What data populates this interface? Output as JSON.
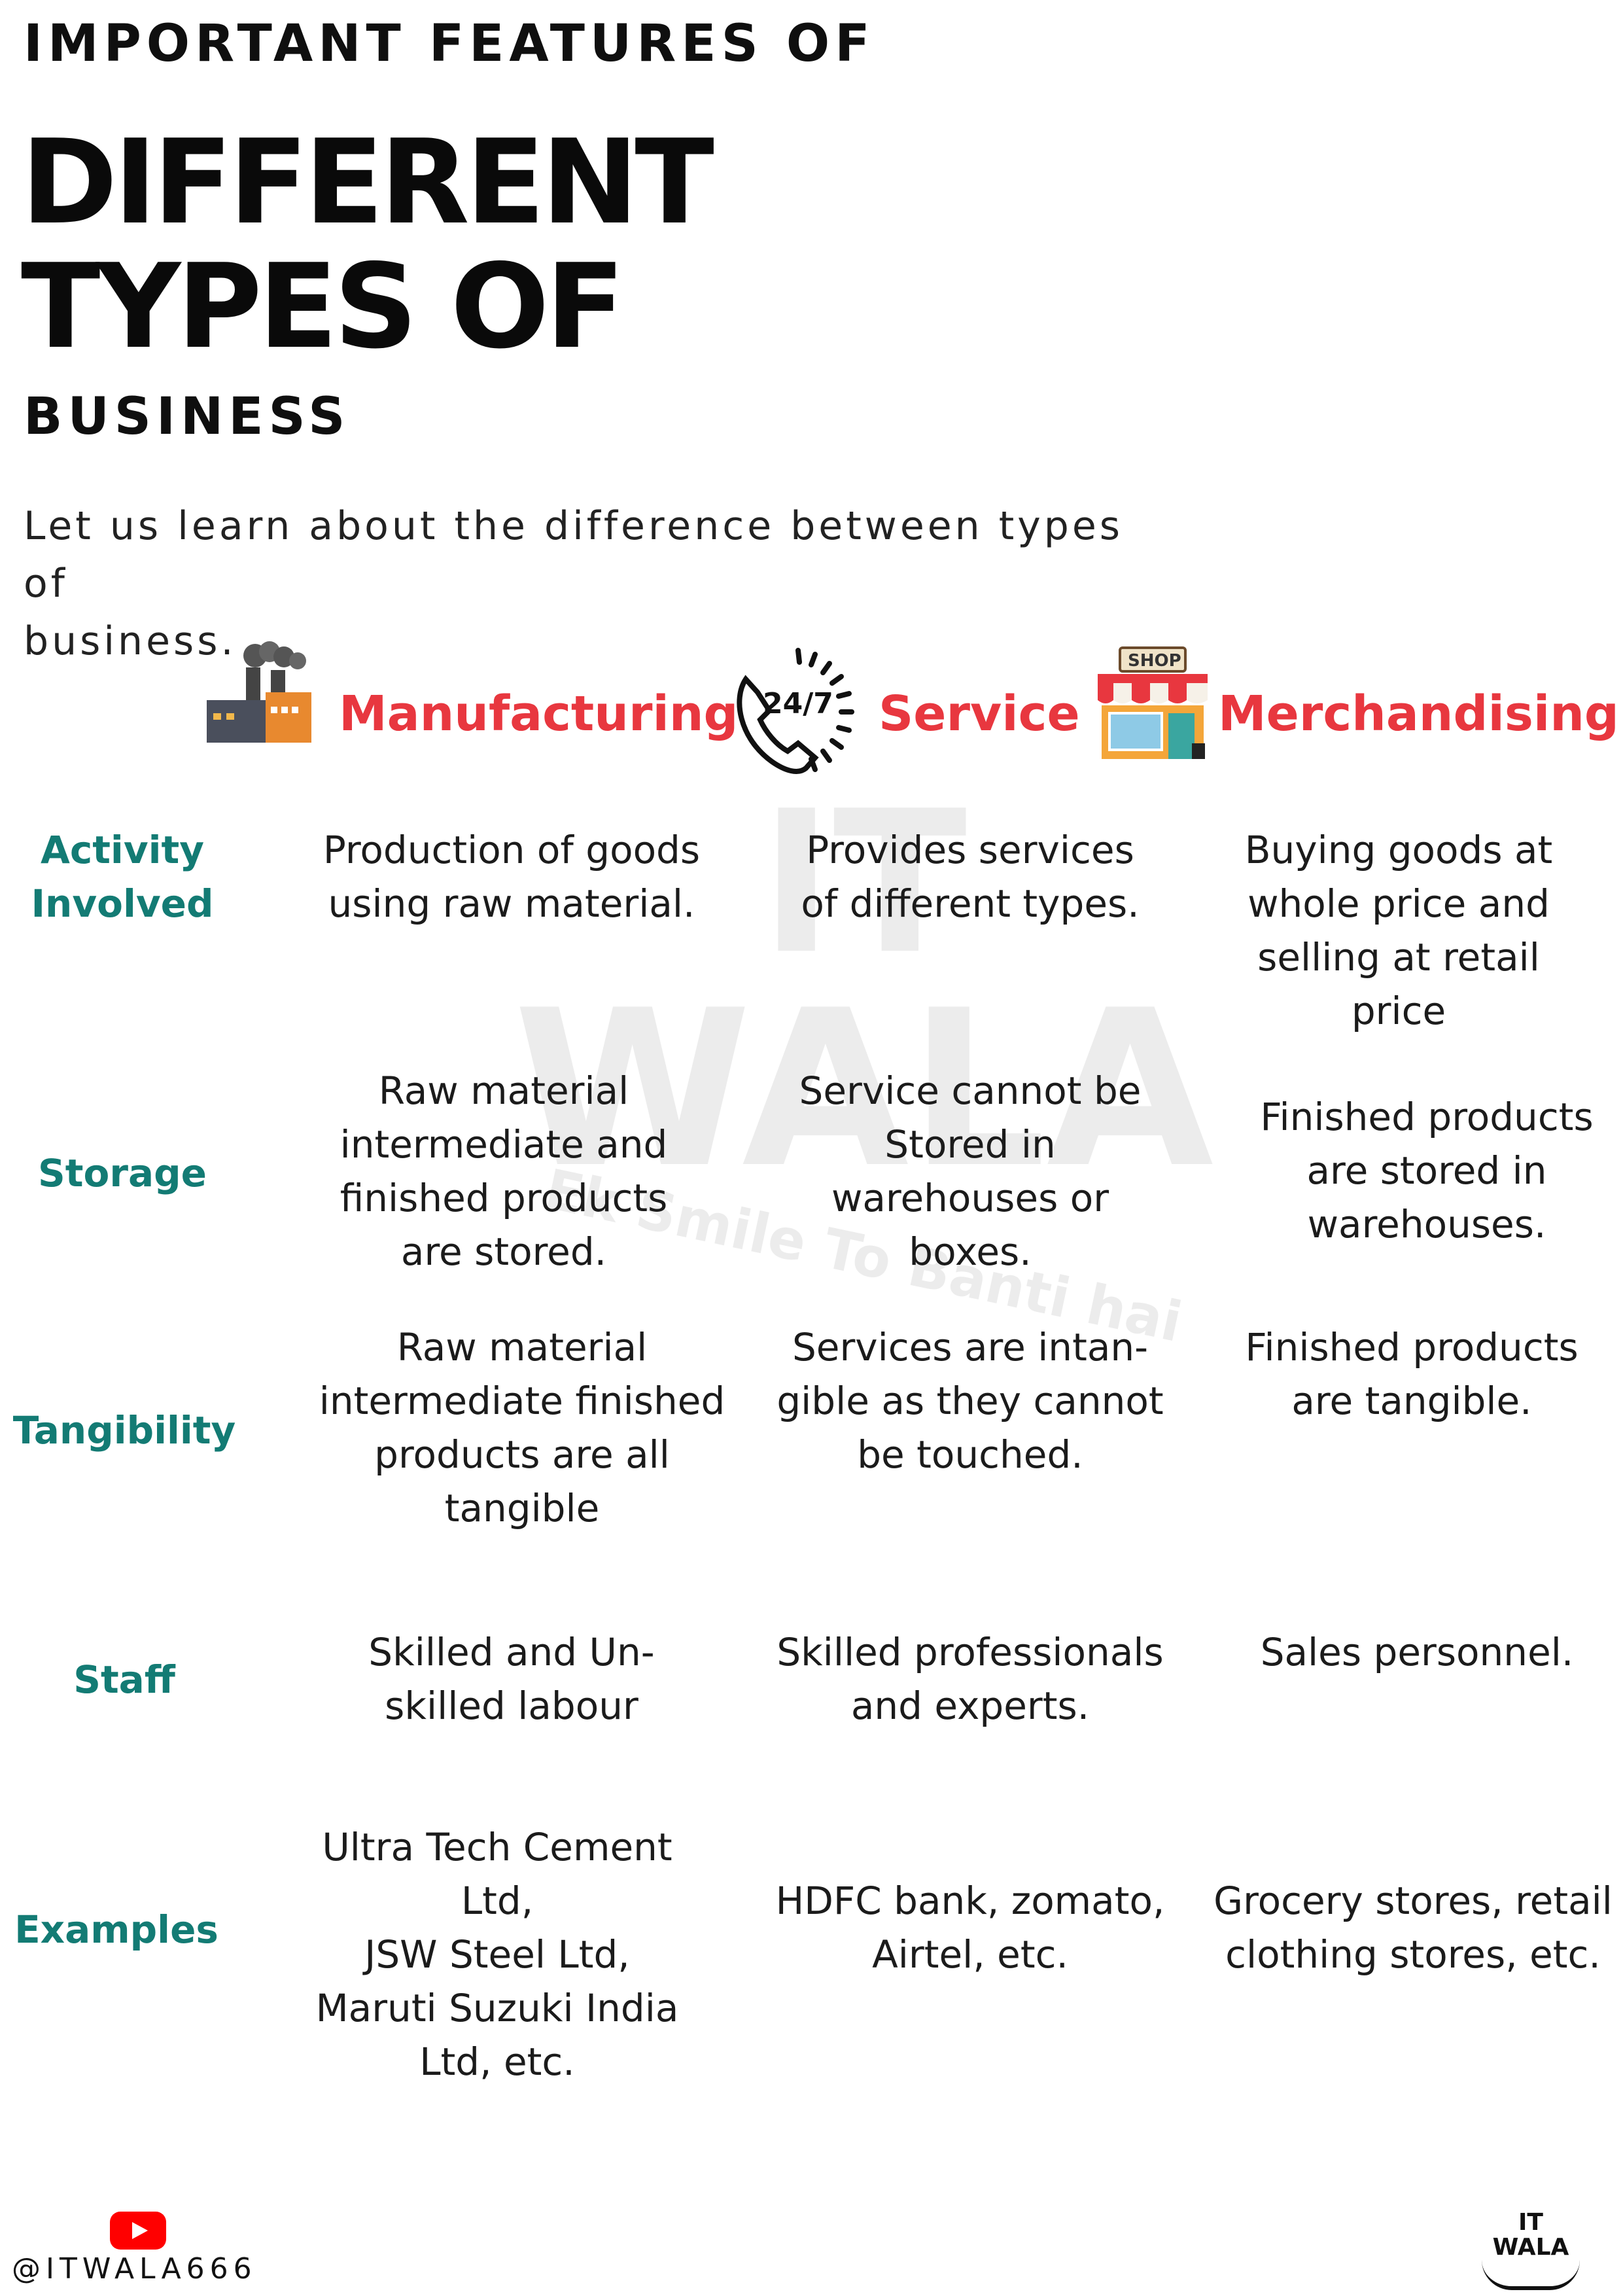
{
  "header": {
    "kicker": "IMPORTANT FEATURES OF",
    "title_line1": "DIFFERENT",
    "title_line2": "TYPES OF",
    "subtitle": "BUSINESS",
    "intro_line1": "Let us learn about the difference between types of",
    "intro_line2": "business."
  },
  "columns": [
    {
      "label": "Manufacturing",
      "icon": "factory-icon"
    },
    {
      "label": "Service",
      "icon": "phone-24-7-icon"
    },
    {
      "label": "Merchandising",
      "icon": "shop-icon"
    }
  ],
  "rows": [
    {
      "label_lines": [
        "Activity",
        "Involved"
      ],
      "cells": [
        [
          "Production of goods",
          "using raw material."
        ],
        [
          "Provides services",
          "of different types."
        ],
        [
          "Buying goods at",
          "whole price and",
          "selling at retail",
          "price"
        ]
      ]
    },
    {
      "label_lines": [
        "Storage"
      ],
      "cells": [
        [
          "Raw material",
          "intermediate and",
          "finished products",
          "are stored."
        ],
        [
          "Service cannot be",
          "Stored in",
          "warehouses or",
          "boxes."
        ],
        [
          "Finished products",
          "are stored in",
          "warehouses."
        ]
      ]
    },
    {
      "label_lines": [
        "Tangibility"
      ],
      "cells": [
        [
          "Raw material",
          "intermediate finished",
          "products are all",
          "tangible"
        ],
        [
          "Services are intan-",
          "gible as they cannot",
          "be touched."
        ],
        [
          "Finished products",
          "are tangible."
        ]
      ]
    },
    {
      "label_lines": [
        "Staff"
      ],
      "cells": [
        [
          "Skilled and Un-",
          "skilled labour"
        ],
        [
          "Skilled professionals",
          "and experts."
        ],
        [
          "Sales personnel."
        ]
      ]
    },
    {
      "label_lines": [
        "Examples"
      ],
      "cells": [
        [
          "Ultra Tech Cement",
          "Ltd,",
          "JSW Steel Ltd,",
          "Maruti Suzuki India",
          "Ltd, etc."
        ],
        [
          "HDFC bank, zomato,",
          "Airtel, etc."
        ],
        [
          "Grocery stores, retail",
          "clothing stores, etc."
        ]
      ]
    }
  ],
  "watermark": {
    "line1": "IT",
    "line2": "WALA",
    "tagline": "Ek Smile To Banti hai"
  },
  "footer": {
    "handle": "@ITWALA666",
    "social_icon": "youtube-icon",
    "logo_line1": "IT",
    "logo_line2": "WALA"
  },
  "colors": {
    "column_header": "#e8373f",
    "row_label": "#137b74",
    "youtube": "#ff0000"
  }
}
